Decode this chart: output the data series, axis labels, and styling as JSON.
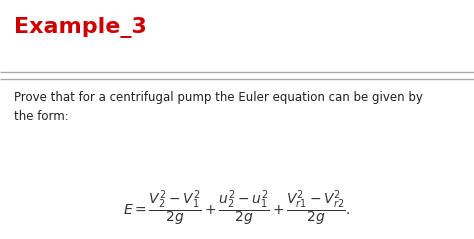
{
  "title": "Example_3",
  "title_color": "#cc0000",
  "title_fontsize": 16,
  "body_text": "Prove that for a centrifugal pump the Euler equation can be given by\nthe form:",
  "body_fontsize": 8.5,
  "body_color": "#222222",
  "formula": "$E = \\dfrac{V_2^2 - V_1^2}{2g} + \\dfrac{u_2^2 - u_1^2}{2g} + \\dfrac{V_{r1}^2 - V_{r2}^2}{2g}.$",
  "formula_fontsize": 10,
  "formula_color": "#333333",
  "line_color": "#999999",
  "bg_color": "#ffffff",
  "fig_width": 4.74,
  "fig_height": 2.39,
  "dpi": 100
}
